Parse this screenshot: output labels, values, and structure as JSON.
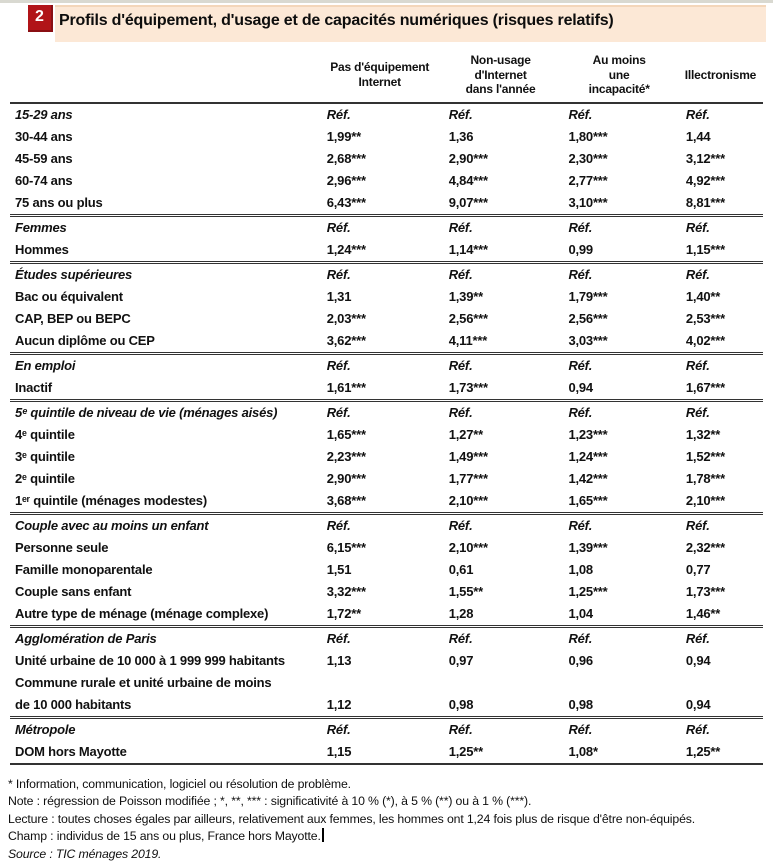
{
  "figure": {
    "number": "2",
    "title": "Profils d'équipement, d'usage et de capacités numériques (risques relatifs)"
  },
  "table": {
    "type": "table",
    "columns": [
      {
        "lines": [
          "Pas d'équipement",
          "Internet"
        ]
      },
      {
        "lines": [
          "Non-usage",
          "d'Internet",
          "dans l'année"
        ]
      },
      {
        "lines": [
          "Au moins",
          "une",
          "incapacité*"
        ]
      },
      {
        "lines": [
          "Illectronisme"
        ]
      }
    ],
    "groups": [
      {
        "name": "age",
        "rows": [
          {
            "label": "15-29 ans",
            "ref": true,
            "values": [
              "Réf.",
              "Réf.",
              "Réf.",
              "Réf."
            ]
          },
          {
            "label": "30-44 ans",
            "values": [
              "1,99**",
              "1,36",
              "1,80***",
              "1,44"
            ]
          },
          {
            "label": "45-59 ans",
            "values": [
              "2,68***",
              "2,90***",
              "2,30***",
              "3,12***"
            ]
          },
          {
            "label": "60-74 ans",
            "values": [
              "2,96***",
              "4,84***",
              "2,77***",
              "4,92***"
            ]
          },
          {
            "label": "75 ans ou plus",
            "values": [
              "6,43***",
              "9,07***",
              "3,10***",
              "8,81***"
            ]
          }
        ]
      },
      {
        "name": "sexe",
        "rows": [
          {
            "label": "Femmes",
            "ref": true,
            "values": [
              "Réf.",
              "Réf.",
              "Réf.",
              "Réf."
            ]
          },
          {
            "label": "Hommes",
            "values": [
              "1,24***",
              "1,14***",
              "0,99",
              "1,15***"
            ]
          }
        ]
      },
      {
        "name": "diplome",
        "rows": [
          {
            "label": "Études supérieures",
            "ref": true,
            "values": [
              "Réf.",
              "Réf.",
              "Réf.",
              "Réf."
            ]
          },
          {
            "label": "Bac ou équivalent",
            "values": [
              "1,31",
              "1,39**",
              "1,79***",
              "1,40**"
            ]
          },
          {
            "label": "CAP, BEP ou BEPC",
            "values": [
              "2,03***",
              "2,56***",
              "2,56***",
              "2,53***"
            ]
          },
          {
            "label": "Aucun diplôme ou CEP",
            "values": [
              "3,62***",
              "4,11***",
              "3,03***",
              "4,02***"
            ]
          }
        ]
      },
      {
        "name": "emploi",
        "rows": [
          {
            "label": "En emploi",
            "ref": true,
            "values": [
              "Réf.",
              "Réf.",
              "Réf.",
              "Réf."
            ]
          },
          {
            "label": "Inactif",
            "values": [
              "1,61***",
              "1,73***",
              "0,94",
              "1,67***"
            ]
          }
        ]
      },
      {
        "name": "niveau-de-vie",
        "rows": [
          {
            "label": "5ᵉ quintile de niveau de vie (ménages aisés)",
            "ref": true,
            "values": [
              "Réf.",
              "Réf.",
              "Réf.",
              "Réf."
            ]
          },
          {
            "label": "4ᵉ quintile",
            "values": [
              "1,65***",
              "1,27**",
              "1,23***",
              "1,32**"
            ]
          },
          {
            "label": "3ᵉ quintile",
            "values": [
              "2,23***",
              "1,49***",
              "1,24***",
              "1,52***"
            ]
          },
          {
            "label": "2ᵉ quintile",
            "values": [
              "2,90***",
              "1,77***",
              "1,42***",
              "1,78***"
            ]
          },
          {
            "label": "1ᵉʳ quintile (ménages modestes)",
            "values": [
              "3,68***",
              "2,10***",
              "1,65***",
              "2,10***"
            ]
          }
        ]
      },
      {
        "name": "type-de-menage",
        "rows": [
          {
            "label": "Couple avec au moins un enfant",
            "ref": true,
            "values": [
              "Réf.",
              "Réf.",
              "Réf.",
              "Réf."
            ]
          },
          {
            "label": "Personne seule",
            "values": [
              "6,15***",
              "2,10***",
              "1,39***",
              "2,32***"
            ]
          },
          {
            "label": "Famille monoparentale",
            "values": [
              "1,51",
              "0,61",
              "1,08",
              "0,77"
            ]
          },
          {
            "label": "Couple sans enfant",
            "values": [
              "3,32***",
              "1,55**",
              "1,25***",
              "1,73***"
            ]
          },
          {
            "label": "Autre type de ménage (ménage complexe)",
            "values": [
              "1,72**",
              "1,28",
              "1,04",
              "1,46**"
            ]
          }
        ]
      },
      {
        "name": "territoire",
        "rows": [
          {
            "label": "Agglomération de Paris",
            "ref": true,
            "values": [
              "Réf.",
              "Réf.",
              "Réf.",
              "Réf."
            ]
          },
          {
            "label": "Unité urbaine de 10 000 à 1 999 999 habitants",
            "values": [
              "1,13",
              "0,97",
              "0,96",
              "0,94"
            ]
          },
          {
            "label": "Commune rurale et unité urbaine de moins",
            "values": [
              "",
              "",
              "",
              ""
            ]
          },
          {
            "label": "de 10 000 habitants",
            "values": [
              "1,12",
              "0,98",
              "0,98",
              "0,94"
            ]
          }
        ]
      },
      {
        "name": "metropole",
        "rows": [
          {
            "label": "Métropole",
            "ref": true,
            "values": [
              "Réf.",
              "Réf.",
              "Réf.",
              "Réf."
            ]
          },
          {
            "label": "DOM hors Mayotte",
            "values": [
              "1,15",
              "1,25**",
              "1,08*",
              "1,25**"
            ]
          }
        ]
      }
    ]
  },
  "notes": [
    {
      "text": "* Information, communication, logiciel ou résolution de problème."
    },
    {
      "text": "Note : régression de Poisson modifiée ; *, **, *** : significativité à 10 % (*), à 5 % (**) ou à 1 % (***)."
    },
    {
      "text": "Lecture : toutes choses égales par ailleurs, relativement aux femmes, les hommes ont 1,24 fois plus de risque d'être non-équipés."
    },
    {
      "text": "Champ : individus de 15 ans ou plus, France hors Mayotte.",
      "caret": true
    },
    {
      "text": "Source : TIC ménages 2019.",
      "italic": true
    }
  ],
  "colors": {
    "accent_red": "#b11418",
    "title_bar_bg": "#fce8d6",
    "rule": "#333333"
  }
}
